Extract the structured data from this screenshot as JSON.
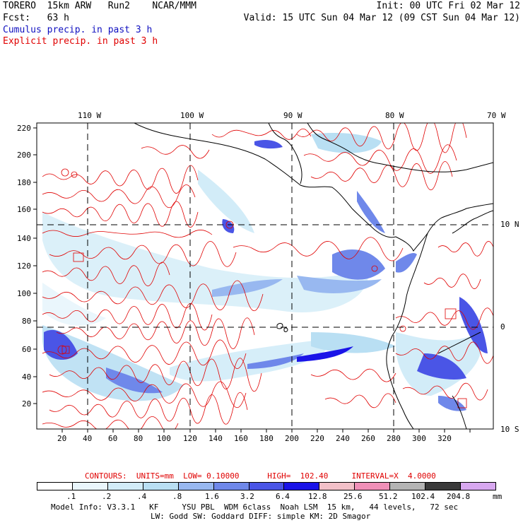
{
  "header": {
    "line1_left": "TORERO  15km ARW   Run2    NCAR/MMM",
    "line1_right": "Init: 00 UTC Fri 02 Mar 12",
    "line2_left": "Fcst:   63 h",
    "line2_right": "Valid: 15 UTC Sun 04 Mar 12 (09 CST Sun 04 Mar 12)",
    "legend_cumulus": "Cumulus precip. in past 3 h",
    "legend_explicit": "Explicit precip. in past 3 h"
  },
  "map": {
    "lon_labels": [
      "110 W",
      "100 W",
      "90 W",
      "80 W",
      "70 W"
    ],
    "lat_labels": [
      "10 N",
      "0",
      "10 S"
    ],
    "x_ticks": [
      "20",
      "40",
      "60",
      "80",
      "100",
      "120",
      "140",
      "160",
      "180",
      "200",
      "220",
      "240",
      "260",
      "280",
      "300",
      "320"
    ],
    "y_ticks": [
      "220",
      "200",
      "180",
      "160",
      "140",
      "120",
      "100",
      "80",
      "60",
      "40",
      "20"
    ],
    "contour_color": "#e00000",
    "coast_color": "#000000"
  },
  "contour_info": {
    "label": "CONTOURS:  UNITS=mm  LOW= 0.10000      HIGH=  102.40     INTERVAL=X  4.0000"
  },
  "colorbar": {
    "labels": [
      ".1",
      ".2",
      ".4",
      ".8",
      "1.6",
      "3.2",
      "6.4",
      "12.8",
      "25.6",
      "51.2",
      "102.4",
      "204.8"
    ],
    "unit": "mm",
    "colors": [
      "#ffffff",
      "#eaf6fc",
      "#d2ecf8",
      "#b9dff3",
      "#98b8f0",
      "#6f88ea",
      "#4a55e6",
      "#1a14e8",
      "#f2c0c8",
      "#f090b8",
      "#b4b4b4",
      "#3a3a3a",
      "#d8a8f0"
    ]
  },
  "footer": {
    "line1": "Model Info: V3.3.1   KF     YSU PBL  WDM 6class  Noah LSM  15 km,   44 levels,   72 sec",
    "line2": "LW: Godd SW: Goddard DIFF: simple KM: 2D Smagor"
  }
}
